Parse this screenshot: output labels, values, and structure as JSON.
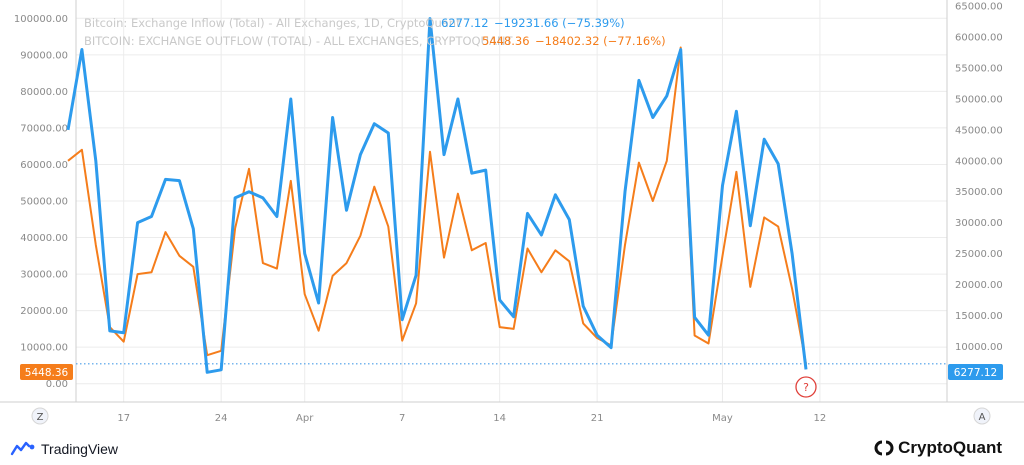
{
  "chart_data": {
    "type": "line",
    "legend": {
      "inflow": {
        "name": "Bitcoin: Exchange Inflow (Total) - All Exchanges, 1D, CryptoQuant",
        "value": "6277.12",
        "change": "−19231.66 (−75.39%)"
      },
      "outflow": {
        "name": "BITCOIN: EXCHANGE OUTFLOW (TOTAL) - ALL EXCHANGES, CRYPTOQUANT",
        "value": "5448.36",
        "change": "−18402.32 (−77.16%)"
      }
    },
    "left_axis": {
      "ticks": [
        "100000.00",
        "90000.00",
        "80000.00",
        "70000.00",
        "60000.00",
        "50000.00",
        "40000.00",
        "30000.00",
        "20000.00",
        "10000.00",
        "0.00"
      ],
      "ylim": [
        -5000,
        105000
      ]
    },
    "right_axis": {
      "ticks": [
        "65000.00",
        "60000.00",
        "55000.00",
        "50000.00",
        "45000.00",
        "40000.00",
        "35000.00",
        "30000.00",
        "25000.00",
        "20000.00",
        "15000.00",
        "10000.00"
      ],
      "ylim": [
        1000,
        66000
      ]
    },
    "x_labels": [
      "17",
      "24",
      "Apr",
      "7",
      "14",
      "21",
      "May",
      "12"
    ],
    "last_value_labels": {
      "left": "5448.36",
      "right": "6277.12"
    },
    "axis_buttons": {
      "left": "Z",
      "right": "A"
    },
    "marker_label": "?",
    "colors": {
      "inflow": "#2d9bed",
      "outflow": "#f57d1b",
      "gridline": "#ececec",
      "dotted": "#4a9ee8"
    },
    "series": [
      {
        "name": "Bitcoin: Exchange Inflow (Total) - All Exchanges, 1D, CryptoQuant",
        "axis": "right",
        "values": [
          45000,
          58000,
          40000,
          12500,
          12200,
          30000,
          31000,
          37000,
          36800,
          29000,
          5800,
          6200,
          34000,
          35000,
          34000,
          31000,
          50000,
          25000,
          17000,
          47000,
          32000,
          41000,
          46000,
          44500,
          14300,
          21500,
          63000,
          41000,
          50000,
          38000,
          38500,
          17500,
          14800,
          31500,
          28000,
          34500,
          30500,
          16500,
          11800,
          9800,
          35000,
          53000,
          47000,
          50500,
          58000,
          14700,
          11800,
          36000,
          48000,
          29500,
          43500,
          39500,
          25000,
          6277.12
        ]
      },
      {
        "name": "BITCOIN: EXCHANGE OUTFLOW (TOTAL) - ALL EXCHANGES, CRYPTOQUANT",
        "axis": "left",
        "values": [
          61000,
          64000,
          38000,
          15500,
          11500,
          30000,
          30500,
          41500,
          35000,
          32000,
          7800,
          9000,
          42500,
          58800,
          33000,
          31500,
          55500,
          24500,
          14500,
          29500,
          33000,
          40500,
          53900,
          43000,
          11800,
          22000,
          63500,
          34500,
          52000,
          36500,
          38500,
          15500,
          15000,
          37000,
          30500,
          36500,
          33500,
          16500,
          12500,
          10500,
          38000,
          60500,
          50000,
          61000,
          92000,
          13200,
          11000,
          35000,
          58000,
          26500,
          45500,
          43000,
          26000,
          5448.36
        ]
      }
    ]
  }
}
